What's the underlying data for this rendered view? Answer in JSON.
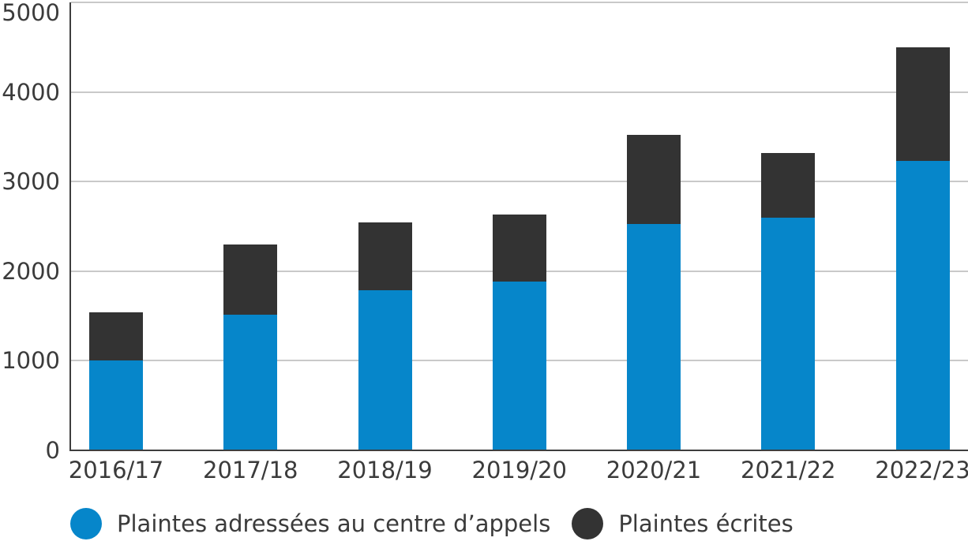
{
  "chart_data": {
    "type": "bar",
    "stacked": true,
    "title": "",
    "xlabel": "",
    "ylabel": "",
    "categories": [
      "2016/17",
      "2017/18",
      "2018/19",
      "2019/20",
      "2020/21",
      "2021/22",
      "2022/23"
    ],
    "series": [
      {
        "name": "Plaintes adressées au centre d’appels",
        "color": "#0686ca",
        "values": [
          1000,
          1515,
          1790,
          1880,
          2530,
          2600,
          3230
        ]
      },
      {
        "name": "Plaintes écrites",
        "color": "#333333",
        "values": [
          545,
          785,
          755,
          755,
          990,
          720,
          1270
        ]
      }
    ],
    "ylim": [
      0,
      5000
    ],
    "yticks": [
      0,
      1000,
      2000,
      3000,
      4000,
      5000
    ],
    "grid": "horizontal",
    "legend_position": "bottom"
  },
  "style_colors": {
    "axis": "#3e3e3e",
    "gridline": "#c9c9c9",
    "text": "#3b3b3b",
    "background": "#ffffff"
  }
}
